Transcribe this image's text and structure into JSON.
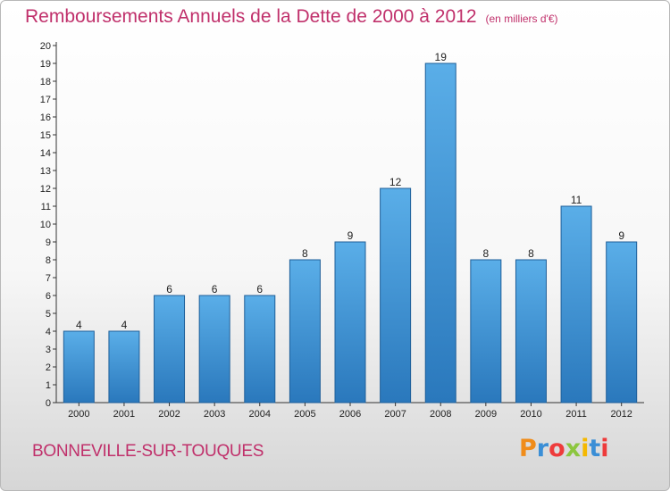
{
  "header": {
    "title": "Remboursements Annuels de la Dette de 2000 à 2012",
    "unit": "(en milliers d'€)"
  },
  "footer": {
    "commune": "BONNEVILLE-SUR-TOUQUES",
    "brand": {
      "letters": [
        "P",
        "r",
        "o",
        "x",
        "i",
        "t",
        "i"
      ],
      "colors": [
        "#f08c1a",
        "#3a8ed6",
        "#ee3b3b",
        "#8cc63f",
        "#f5b800",
        "#3a8ed6",
        "#ee3b3b"
      ]
    }
  },
  "colors": {
    "title": "#c0306b",
    "bar_light": "#5aaee8",
    "bar_dark": "#2a78bc"
  },
  "chart_data": {
    "type": "bar",
    "title": "Remboursements Annuels de la Dette de 2000 à 2012",
    "subtitle": "(en milliers d'€)",
    "categories": [
      "2000",
      "2001",
      "2002",
      "2003",
      "2004",
      "2005",
      "2006",
      "2007",
      "2008",
      "2009",
      "2010",
      "2011",
      "2012"
    ],
    "values": [
      4,
      4,
      6,
      6,
      6,
      8,
      9,
      12,
      19,
      8,
      8,
      11,
      9
    ],
    "data_labels": [
      "4",
      "4",
      "6",
      "6",
      "6",
      "8",
      "9",
      "12",
      "19",
      "8",
      "8",
      "11",
      "9"
    ],
    "y_ticks": [
      "0",
      "1",
      "2",
      "3",
      "4",
      "5",
      "6",
      "7",
      "8",
      "9",
      "10",
      "11",
      "12",
      "13",
      "14",
      "15",
      "16",
      "17",
      "18",
      "19",
      "20"
    ],
    "ylim": [
      0,
      20
    ],
    "xlabel": "",
    "ylabel": "",
    "grid": false,
    "legend": "none"
  }
}
